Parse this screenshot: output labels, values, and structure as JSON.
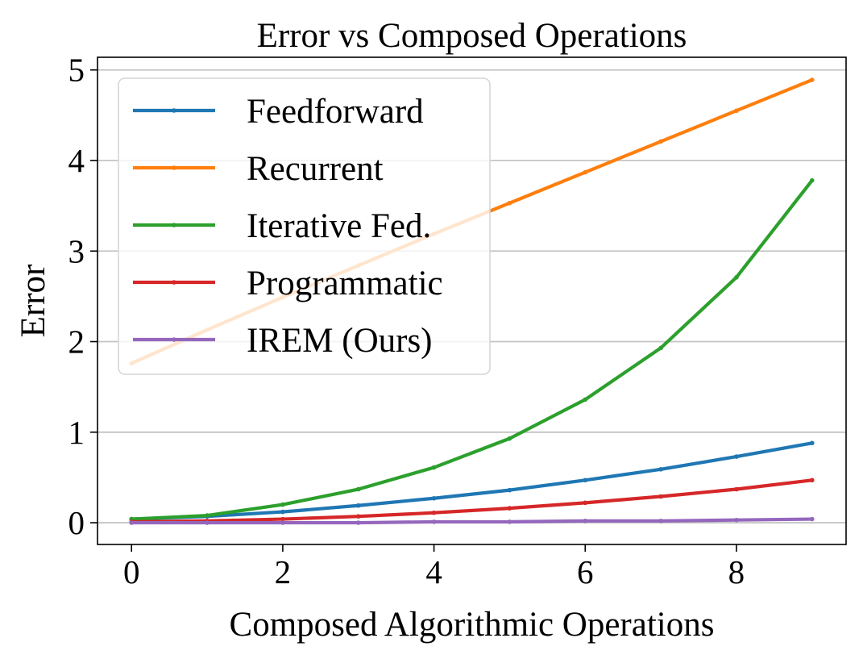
{
  "chart_data": {
    "type": "line",
    "title": "Error vs Composed Operations",
    "xlabel": "Composed Algorithmic Operations",
    "ylabel": "Error",
    "x": [
      0,
      1,
      2,
      3,
      4,
      5,
      6,
      7,
      8,
      9
    ],
    "xlim": [
      -0.45,
      9.45
    ],
    "ylim": [
      -0.24,
      5.14
    ],
    "xticks": [
      0,
      2,
      4,
      6,
      8
    ],
    "yticks": [
      0,
      1,
      2,
      3,
      4,
      5
    ],
    "grid": "horizontal",
    "legend_position": "upper-left",
    "series": [
      {
        "name": "Feedforward",
        "color": "#1f77b4",
        "values": [
          0.04,
          0.07,
          0.12,
          0.19,
          0.27,
          0.36,
          0.47,
          0.59,
          0.73,
          0.88
        ]
      },
      {
        "name": "Recurrent",
        "color": "#ff7f0e",
        "values": [
          1.76,
          2.13,
          2.49,
          2.84,
          3.19,
          3.53,
          3.87,
          4.21,
          4.55,
          4.89
        ]
      },
      {
        "name": "Iterative Fed.",
        "color": "#2ca02c",
        "values": [
          0.04,
          0.08,
          0.2,
          0.37,
          0.61,
          0.93,
          1.36,
          1.93,
          2.71,
          3.78
        ]
      },
      {
        "name": "Programmatic",
        "color": "#d62728",
        "values": [
          0.01,
          0.02,
          0.04,
          0.07,
          0.11,
          0.16,
          0.22,
          0.29,
          0.37,
          0.47
        ]
      },
      {
        "name": "IREM (Ours)",
        "color": "#9467bd",
        "values": [
          0.0,
          0.0,
          0.0,
          0.0,
          0.01,
          0.01,
          0.02,
          0.02,
          0.03,
          0.04
        ]
      }
    ]
  }
}
